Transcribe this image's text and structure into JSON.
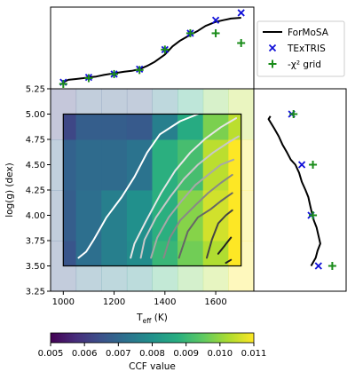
{
  "chart_data": [
    {
      "panel": "main",
      "type": "heatmap",
      "xlabel_base": "T",
      "xlabel_sub": "eff",
      "xlabel_unit": " (K)",
      "ylabel": "log(g) (dex)",
      "xlim": [
        950,
        1750
      ],
      "ylim": [
        3.25,
        5.25
      ],
      "x_ticks": [
        1000,
        1200,
        1400,
        1600
      ],
      "x_tick_labels": [
        "1000",
        "1200",
        "1400",
        "1600"
      ],
      "y_ticks": [
        3.25,
        3.5,
        3.75,
        4.0,
        4.25,
        4.5,
        4.75,
        5.0,
        5.25
      ],
      "y_tick_labels": [
        "3.25",
        "3.50",
        "3.75",
        "4.00",
        "4.25",
        "4.50",
        "4.75",
        "5.00",
        "5.25"
      ],
      "grid_x": [
        1000,
        1100,
        1200,
        1300,
        1400,
        1500,
        1600,
        1700
      ],
      "grid_y": [
        3.5,
        4.0,
        4.5,
        5.0
      ],
      "cell_half_width_x": 50,
      "cell_half_height_y": 0.25,
      "inner_box": {
        "x": [
          1000,
          1700
        ],
        "y": [
          3.5,
          5.0
        ]
      },
      "ccf_values": [
        [
          0.0066,
          0.0072,
          0.0076,
          0.0079,
          0.009,
          0.0097,
          0.0103,
          0.011
        ],
        [
          0.0068,
          0.0072,
          0.0076,
          0.008,
          0.0088,
          0.0099,
          0.0106,
          0.011
        ],
        [
          0.0069,
          0.0071,
          0.0071,
          0.0073,
          0.0088,
          0.0092,
          0.0104,
          0.011
        ],
        [
          0.0063,
          0.0068,
          0.0068,
          0.0067,
          0.0076,
          0.0087,
          0.0098,
          0.0104
        ]
      ],
      "contours": [
        {
          "color": "#ffffff",
          "points": [
            [
              1060,
              3.58
            ],
            [
              1090,
              3.64
            ],
            [
              1120,
              3.76
            ],
            [
              1170,
              3.98
            ],
            [
              1230,
              4.18
            ],
            [
              1280,
              4.38
            ],
            [
              1330,
              4.62
            ],
            [
              1380,
              4.8
            ],
            [
              1460,
              4.93
            ],
            [
              1530,
              5.0
            ]
          ]
        },
        {
          "color": "#e6e6e6",
          "points": [
            [
              1265,
              3.58
            ],
            [
              1280,
              3.72
            ],
            [
              1325,
              3.94
            ],
            [
              1385,
              4.22
            ],
            [
              1440,
              4.44
            ],
            [
              1500,
              4.62
            ],
            [
              1560,
              4.76
            ],
            [
              1620,
              4.87
            ],
            [
              1680,
              4.96
            ]
          ]
        },
        {
          "color": "#c8c8c8",
          "points": [
            [
              1305,
              3.58
            ],
            [
              1320,
              3.76
            ],
            [
              1365,
              3.98
            ],
            [
              1420,
              4.18
            ],
            [
              1475,
              4.36
            ],
            [
              1530,
              4.5
            ],
            [
              1590,
              4.62
            ],
            [
              1650,
              4.72
            ],
            [
              1690,
              4.78
            ]
          ]
        },
        {
          "color": "#a8a8a8",
          "points": [
            [
              1345,
              3.58
            ],
            [
              1370,
              3.78
            ],
            [
              1415,
              3.98
            ],
            [
              1465,
              4.14
            ],
            [
              1520,
              4.3
            ],
            [
              1570,
              4.4
            ],
            [
              1620,
              4.5
            ],
            [
              1670,
              4.55
            ]
          ]
        },
        {
          "color": "#888888",
          "points": [
            [
              1395,
              3.58
            ],
            [
              1420,
              3.78
            ],
            [
              1460,
              3.95
            ],
            [
              1520,
              4.1
            ],
            [
              1570,
              4.22
            ],
            [
              1620,
              4.32
            ],
            [
              1665,
              4.4
            ]
          ]
        },
        {
          "color": "#666666",
          "points": [
            [
              1455,
              3.58
            ],
            [
              1490,
              3.84
            ],
            [
              1530,
              3.98
            ],
            [
              1580,
              4.06
            ],
            [
              1620,
              4.14
            ],
            [
              1665,
              4.22
            ]
          ]
        },
        {
          "color": "#444444",
          "points": [
            [
              1565,
              3.58
            ],
            [
              1585,
              3.76
            ],
            [
              1610,
              3.92
            ],
            [
              1640,
              4.0
            ],
            [
              1665,
              4.05
            ]
          ]
        },
        {
          "color": "#222222",
          "points": [
            [
              1610,
              3.62
            ],
            [
              1635,
              3.7
            ],
            [
              1660,
              3.78
            ]
          ]
        },
        {
          "color": "#222222",
          "points": [
            [
              1640,
              3.53
            ],
            [
              1660,
              3.56
            ]
          ]
        }
      ]
    },
    {
      "panel": "top",
      "type": "line",
      "x": [
        1000,
        1100,
        1200,
        1300,
        1400,
        1500,
        1600,
        1700
      ],
      "ylim": [
        0,
        1
      ],
      "legend_placement": "top-right, outside",
      "series": [
        {
          "name": "ForMoSA",
          "kind": "line",
          "color": "#000000",
          "x": [
            1000,
            1020,
            1050,
            1080,
            1100,
            1130,
            1160,
            1200,
            1240,
            1270,
            1300,
            1330,
            1360,
            1400,
            1430,
            1460,
            1500,
            1530,
            1560,
            1600,
            1630,
            1660,
            1700
          ],
          "y": [
            0.08,
            0.11,
            0.12,
            0.13,
            0.14,
            0.15,
            0.17,
            0.19,
            0.21,
            0.22,
            0.24,
            0.28,
            0.33,
            0.42,
            0.52,
            0.59,
            0.66,
            0.71,
            0.77,
            0.82,
            0.84,
            0.86,
            0.87
          ]
        },
        {
          "name": "TExTRIS",
          "kind": "x-marker",
          "color": "#1010d8",
          "x": [
            1000,
            1100,
            1200,
            1300,
            1400,
            1500,
            1600,
            1700
          ],
          "y": [
            0.08,
            0.14,
            0.18,
            0.24,
            0.48,
            0.68,
            0.84,
            0.93
          ]
        },
        {
          "name": "-χ² grid",
          "kind": "plus-marker",
          "color": "#1a8c1a",
          "x": [
            1000,
            1100,
            1200,
            1300,
            1400,
            1500,
            1600,
            1700
          ],
          "y": [
            0.06,
            0.13,
            0.18,
            0.23,
            0.48,
            0.68,
            0.68,
            0.56
          ]
        }
      ]
    },
    {
      "panel": "right",
      "type": "line",
      "y": [
        3.5,
        4.0,
        4.5,
        5.0
      ],
      "ylim": [
        3.25,
        5.25
      ],
      "xlim": [
        0,
        1
      ],
      "series": [
        {
          "name": "ForMoSA",
          "kind": "line",
          "color": "#000000",
          "x": [
            0.18,
            0.16,
            0.22,
            0.27,
            0.31,
            0.36,
            0.4,
            0.45,
            0.49,
            0.52,
            0.56,
            0.59,
            0.61,
            0.63,
            0.65,
            0.68,
            0.7,
            0.72,
            0.69,
            0.67,
            0.62
          ],
          "y": [
            4.98,
            4.95,
            4.86,
            4.78,
            4.7,
            4.62,
            4.55,
            4.5,
            4.42,
            4.33,
            4.25,
            4.18,
            4.1,
            4.02,
            3.95,
            3.88,
            3.8,
            3.72,
            3.65,
            3.58,
            3.5
          ]
        },
        {
          "name": "TExTRIS",
          "kind": "x-marker",
          "color": "#1010d8",
          "x": [
            0.41,
            0.52,
            0.62,
            0.7
          ],
          "y": [
            5.0,
            4.5,
            4.0,
            3.5
          ]
        },
        {
          "name": "-χ² grid",
          "kind": "plus-marker",
          "color": "#1a8c1a",
          "x": [
            0.43,
            0.64,
            0.64,
            0.85
          ],
          "y": [
            5.0,
            4.5,
            4.0,
            3.5
          ]
        }
      ]
    },
    {
      "panel": "colorbar",
      "type": "colorbar",
      "label": "CCF value",
      "colormap": "viridis",
      "range": [
        0.005,
        0.011
      ],
      "ticks": [
        0.005,
        0.006,
        0.007,
        0.008,
        0.009,
        0.01,
        0.011
      ],
      "tick_labels": [
        "0.005",
        "0.006",
        "0.007",
        "0.008",
        "0.009",
        "0.010",
        "0.011"
      ]
    }
  ]
}
